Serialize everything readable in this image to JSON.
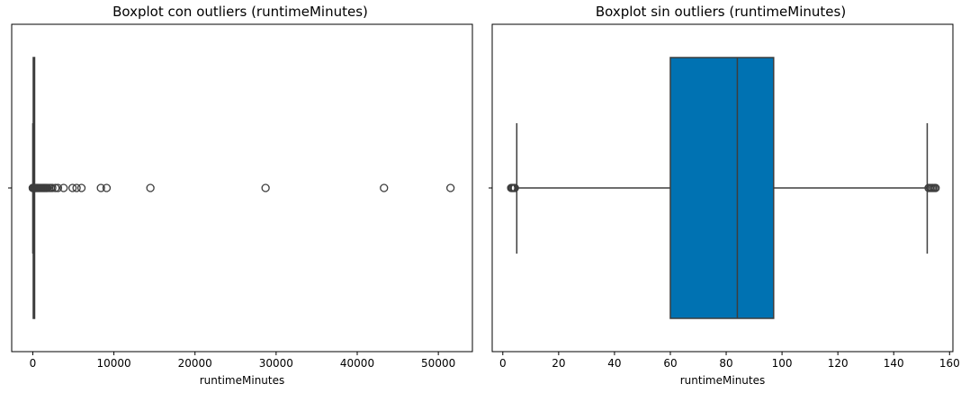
{
  "chart_data": [
    {
      "type": "boxplot",
      "title": "Boxplot con outliers (runtimeMinutes)",
      "xlabel": "runtimeMinutes",
      "ylabel": "",
      "xlim": [
        -2600,
        54200
      ],
      "xticks": [
        0,
        10000,
        20000,
        30000,
        40000,
        50000
      ],
      "orientation": "horizontal",
      "box": {
        "whisker_low": 0,
        "q1": 60,
        "median": 84,
        "q3": 97,
        "whisker_high": 152
      },
      "box_color": "#0072b2",
      "outliers": [
        0,
        10,
        20,
        35,
        50,
        160,
        200,
        250,
        300,
        400,
        500,
        600,
        700,
        800,
        900,
        1000,
        1100,
        1200,
        1300,
        1400,
        1500,
        1600,
        1700,
        1800,
        2000,
        2200,
        2400,
        2800,
        3100,
        3800,
        4900,
        5400,
        6000,
        8400,
        9100,
        14500,
        28700,
        43300,
        51500
      ]
    },
    {
      "type": "boxplot",
      "title": "Boxplot sin outliers (runtimeMinutes)",
      "xlabel": "runtimeMinutes",
      "ylabel": "",
      "xlim": [
        -3.8,
        161.2
      ],
      "xticks": [
        0,
        20,
        40,
        60,
        80,
        100,
        120,
        140,
        160
      ],
      "orientation": "horizontal",
      "box": {
        "whisker_low": 5,
        "q1": 60,
        "median": 84,
        "q3": 97,
        "whisker_high": 152
      },
      "box_color": "#0072b2",
      "outliers": [
        3,
        3.3,
        3.6,
        4,
        4.3,
        152.5,
        153,
        153.5,
        154,
        154.5,
        155
      ]
    }
  ]
}
